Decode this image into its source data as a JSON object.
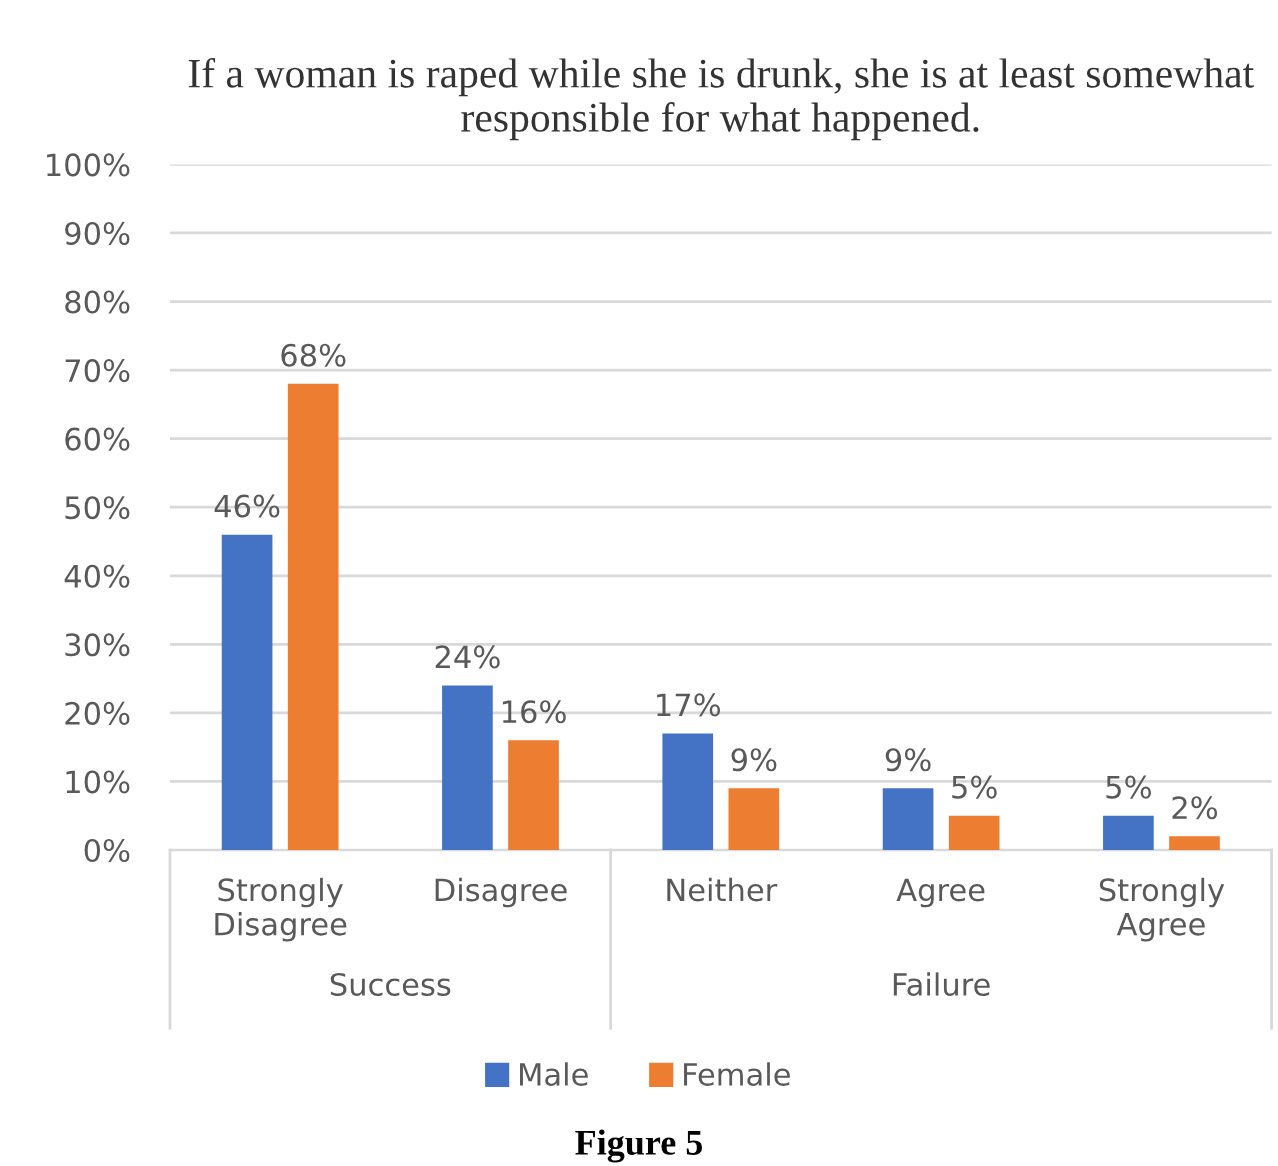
{
  "chart_data": {
    "type": "bar",
    "title": "If a woman is raped while she is drunk, she is at least somewhat responsible for what happened.",
    "categories": [
      "Strongly\nDisagree",
      "Disagree",
      "Neither",
      "Agree",
      "Strongly\nAgree"
    ],
    "series": [
      {
        "name": "Male",
        "color": "#4472c4",
        "values": [
          46,
          24,
          17,
          9,
          5
        ],
        "value_labels": [
          "46%",
          "24%",
          "17%",
          "9%",
          "5%"
        ]
      },
      {
        "name": "Female",
        "color": "#ed7d31",
        "values": [
          68,
          16,
          9,
          5,
          2
        ],
        "value_labels": [
          "68%",
          "16%",
          "9%",
          "5%",
          "2%"
        ]
      }
    ],
    "ylim": [
      0,
      100
    ],
    "yticks": [
      {
        "value": 0,
        "label": "0%"
      },
      {
        "value": 10,
        "label": "10%"
      },
      {
        "value": 20,
        "label": "20%"
      },
      {
        "value": 30,
        "label": "30%"
      },
      {
        "value": 40,
        "label": "40%"
      },
      {
        "value": 50,
        "label": "50%"
      },
      {
        "value": 60,
        "label": "60%"
      },
      {
        "value": 70,
        "label": "70%"
      },
      {
        "value": 80,
        "label": "80%"
      },
      {
        "value": 90,
        "label": "90%"
      },
      {
        "value": 100,
        "label": "100%"
      }
    ],
    "grid": "y",
    "legend": "bottom",
    "annotations": [
      "Success",
      "Failure",
      "Figure 5"
    ]
  }
}
